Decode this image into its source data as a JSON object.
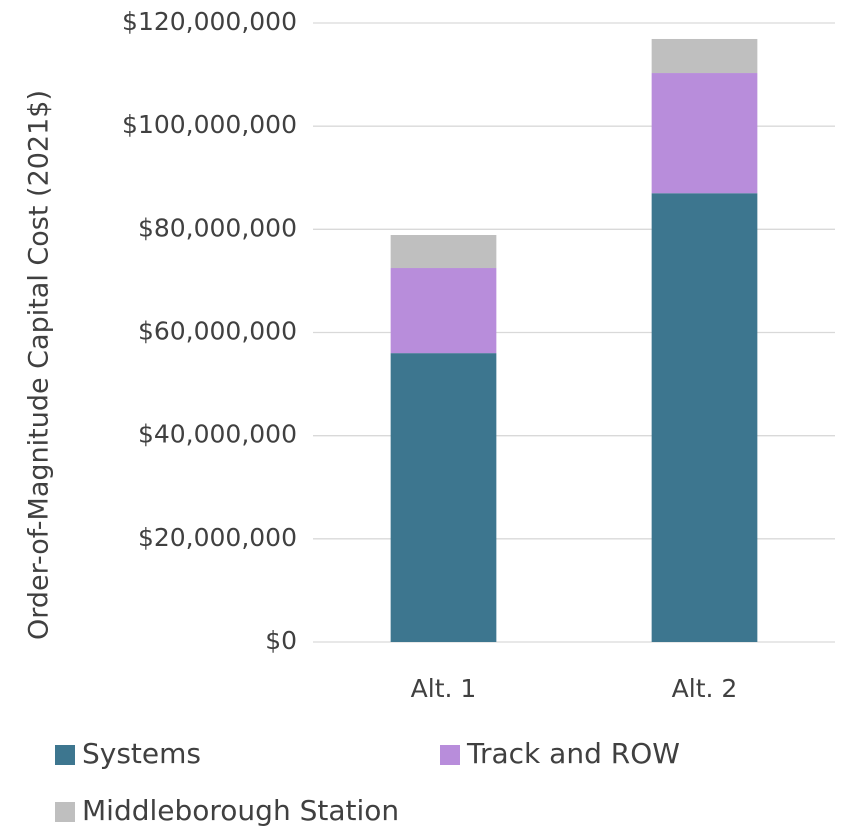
{
  "chart_data": {
    "type": "stacked_bar",
    "y_label": "Order-of-Magnitude Capital Cost (2021$)",
    "categories": [
      "Alt. 1",
      "Alt. 2"
    ],
    "series": [
      {
        "name": "Systems",
        "color": "#3d768f",
        "values": [
          56000000,
          87000000
        ]
      },
      {
        "name": "Track and ROW",
        "color": "#b88ddb",
        "values": [
          16500000,
          23300000
        ]
      },
      {
        "name": "Middleborough Station",
        "color": "#bfbfbf",
        "values": [
          6400000,
          6600000
        ]
      }
    ],
    "ylim": [
      0,
      120000000
    ],
    "yticks": [
      {
        "value": 0,
        "label": "$0"
      },
      {
        "value": 20000000,
        "label": "$20,000,000"
      },
      {
        "value": 40000000,
        "label": "$40,000,000"
      },
      {
        "value": 60000000,
        "label": "$60,000,000"
      },
      {
        "value": 80000000,
        "label": "$80,000,000"
      },
      {
        "value": 100000000,
        "label": "$100,000,000"
      },
      {
        "value": 120000000,
        "label": "$120,000,000"
      }
    ],
    "grid": true
  }
}
